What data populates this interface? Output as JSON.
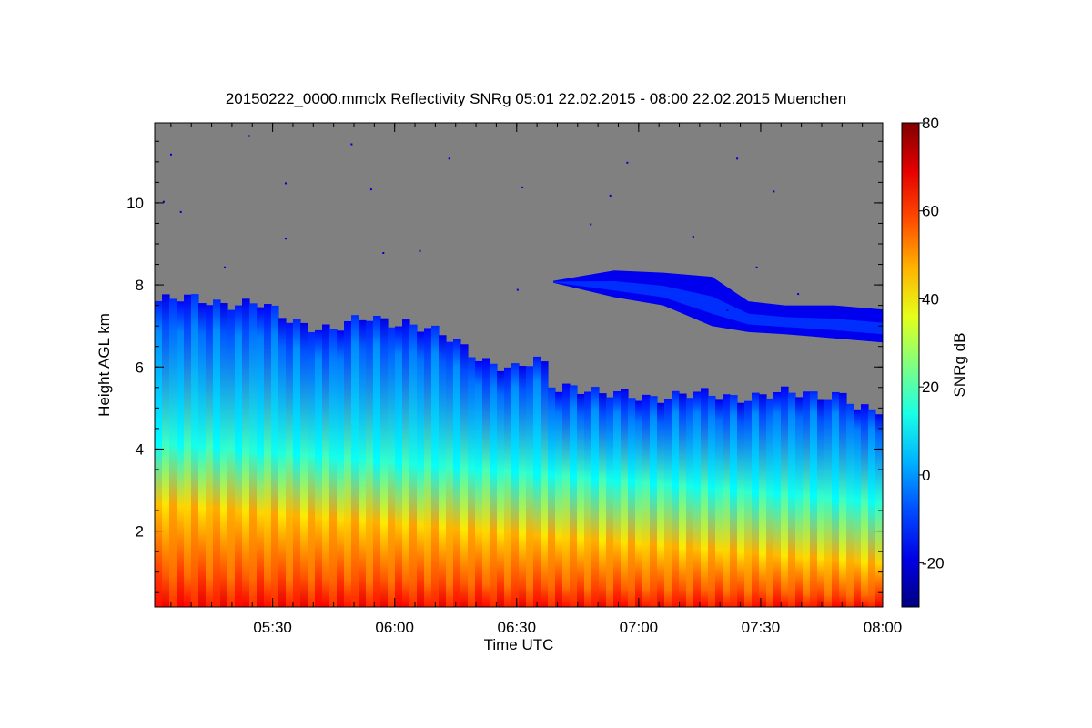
{
  "chart_data": {
    "type": "heatmap",
    "title": "20150222_0000.mmclx Reflectivity SNRg   05:01 22.02.2015 - 08:00 22.02.2015 Muenchen",
    "xlabel": "Time UTC",
    "ylabel": "Height AGL km",
    "xlim_hours": [
      5.0167,
      8.0
    ],
    "ylim_km": [
      0.15,
      11.95
    ],
    "x_ticks": [
      {
        "value": 5.5,
        "label": "05:30"
      },
      {
        "value": 6.0,
        "label": "06:00"
      },
      {
        "value": 6.5,
        "label": "06:30"
      },
      {
        "value": 7.0,
        "label": "07:00"
      },
      {
        "value": 7.5,
        "label": "07:30"
      },
      {
        "value": 8.0,
        "label": "08:00"
      }
    ],
    "y_ticks": [
      {
        "value": 2,
        "label": "2"
      },
      {
        "value": 4,
        "label": "4"
      },
      {
        "value": 6,
        "label": "6"
      },
      {
        "value": 8,
        "label": "8"
      },
      {
        "value": 10,
        "label": "10"
      }
    ],
    "colorbar": {
      "label": "SNRg dB",
      "range": [
        -30,
        80
      ],
      "ticks": [
        {
          "value": -20,
          "label": "-20"
        },
        {
          "value": 0,
          "label": "0"
        },
        {
          "value": 20,
          "label": "20"
        },
        {
          "value": 40,
          "label": "40"
        },
        {
          "value": 60,
          "label": "60"
        },
        {
          "value": 80,
          "label": "80"
        }
      ]
    },
    "no_signal_color": "#808080",
    "main_cloud_top_km": {
      "time_h": [
        5.017,
        5.2,
        5.45,
        5.55,
        5.75,
        5.9,
        6.05,
        6.25,
        6.4,
        6.5,
        6.6,
        6.65,
        6.72,
        6.85,
        7.0,
        7.3,
        7.5,
        7.7,
        7.85,
        7.9,
        8.0
      ],
      "top_km": [
        7.6,
        7.65,
        7.5,
        7.2,
        6.9,
        7.2,
        7.1,
        6.6,
        6.1,
        5.9,
        6.2,
        5.5,
        5.6,
        5.3,
        5.3,
        5.3,
        5.3,
        5.35,
        5.35,
        4.9,
        4.9
      ]
    },
    "upper_layer_km": {
      "time_h": [
        6.65,
        6.9,
        7.1,
        7.3,
        7.45,
        7.6,
        7.8,
        8.0
      ],
      "top_km": [
        8.1,
        8.35,
        8.3,
        8.2,
        7.6,
        7.5,
        7.5,
        7.4
      ],
      "base_km": [
        8.05,
        7.7,
        7.5,
        7.0,
        6.85,
        6.8,
        6.7,
        6.6
      ]
    },
    "value_profile": {
      "description": "approx. SNRg (dB) vs height near cloud: high near ground, decreasing upward",
      "at_ground_db": 65,
      "at_2km_db": 45,
      "at_4km_db": 15,
      "at_top_db": -15
    }
  }
}
